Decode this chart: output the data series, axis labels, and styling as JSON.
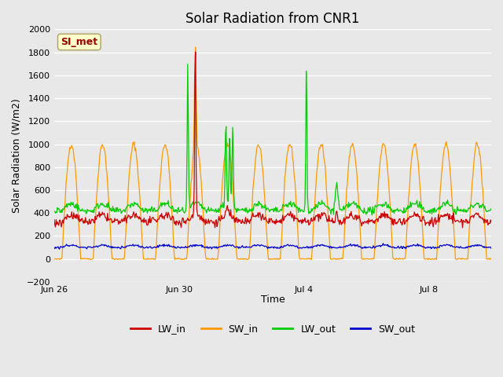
{
  "title": "Solar Radiation from CNR1",
  "xlabel": "Time",
  "ylabel": "Solar Radiation (W/m2)",
  "ylim": [
    -200,
    2000
  ],
  "yticks": [
    -200,
    0,
    200,
    400,
    600,
    800,
    1000,
    1200,
    1400,
    1600,
    1800,
    2000
  ],
  "xtick_labels": [
    "Jun 26",
    "Jun 30",
    "Jul 4",
    "Jul 8"
  ],
  "xtick_positions": [
    0,
    4,
    8,
    12
  ],
  "colors": {
    "LW_in": "#cc0000",
    "SW_in": "#ff9900",
    "LW_out": "#00cc00",
    "SW_out": "#0000cc"
  },
  "background_color": "#e8e8e8",
  "plot_bg_color": "#e8e8e8",
  "grid_color": "#ffffff",
  "annotation_box_color": "#ffffcc",
  "annotation_text": "SI_met",
  "annotation_text_color": "#990000",
  "title_fontsize": 12,
  "axis_label_fontsize": 9,
  "tick_fontsize": 8,
  "legend_fontsize": 9,
  "days": 14,
  "samples_per_day": 48
}
